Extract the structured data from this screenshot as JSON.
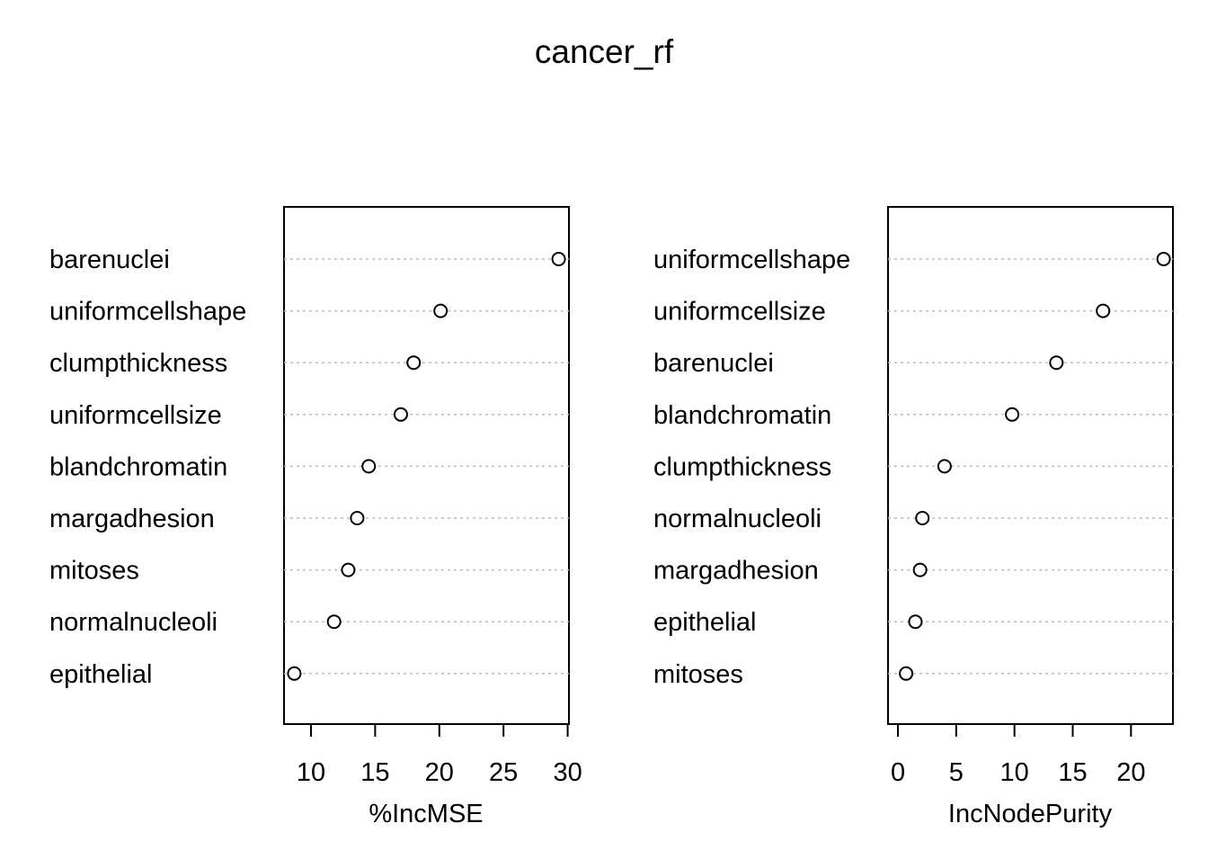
{
  "title": "cancer_rf",
  "chart_data": [
    {
      "type": "scatter",
      "subtype": "dotchart",
      "xlabel": "%IncMSE",
      "ylabel": "",
      "xlim": [
        7.9,
        30.1
      ],
      "xticks": [
        "10",
        "15",
        "20",
        "25",
        "30"
      ],
      "xtick_values": [
        10,
        15,
        20,
        25,
        30
      ],
      "grid": "dotted horizontal guides",
      "categories": [
        "barenuclei",
        "uniformcellshape",
        "clumpthickness",
        "uniformcellsize",
        "blandchromatin",
        "margadhesion",
        "mitoses",
        "normalnucleoli",
        "epithelial"
      ],
      "values": [
        29.3,
        20.1,
        18.0,
        17.0,
        14.5,
        13.6,
        12.9,
        11.8,
        8.7
      ]
    },
    {
      "type": "scatter",
      "subtype": "dotchart",
      "xlabel": "IncNodePurity",
      "ylabel": "",
      "xlim": [
        -0.85,
        23.6
      ],
      "xticks": [
        "0",
        "5",
        "10",
        "15",
        "20"
      ],
      "xtick_values": [
        0,
        5,
        10,
        15,
        20
      ],
      "grid": "dotted horizontal guides",
      "categories": [
        "uniformcellshape",
        "uniformcellsize",
        "barenuclei",
        "blandchromatin",
        "clumpthickness",
        "normalnucleoli",
        "margadhesion",
        "epithelial",
        "mitoses"
      ],
      "values": [
        22.8,
        17.6,
        13.6,
        9.8,
        4.0,
        2.1,
        1.9,
        1.5,
        0.7
      ]
    }
  ],
  "colors": {
    "points": "#000000",
    "frame": "#000000",
    "guides": "#bebebe",
    "background": "#ffffff"
  }
}
